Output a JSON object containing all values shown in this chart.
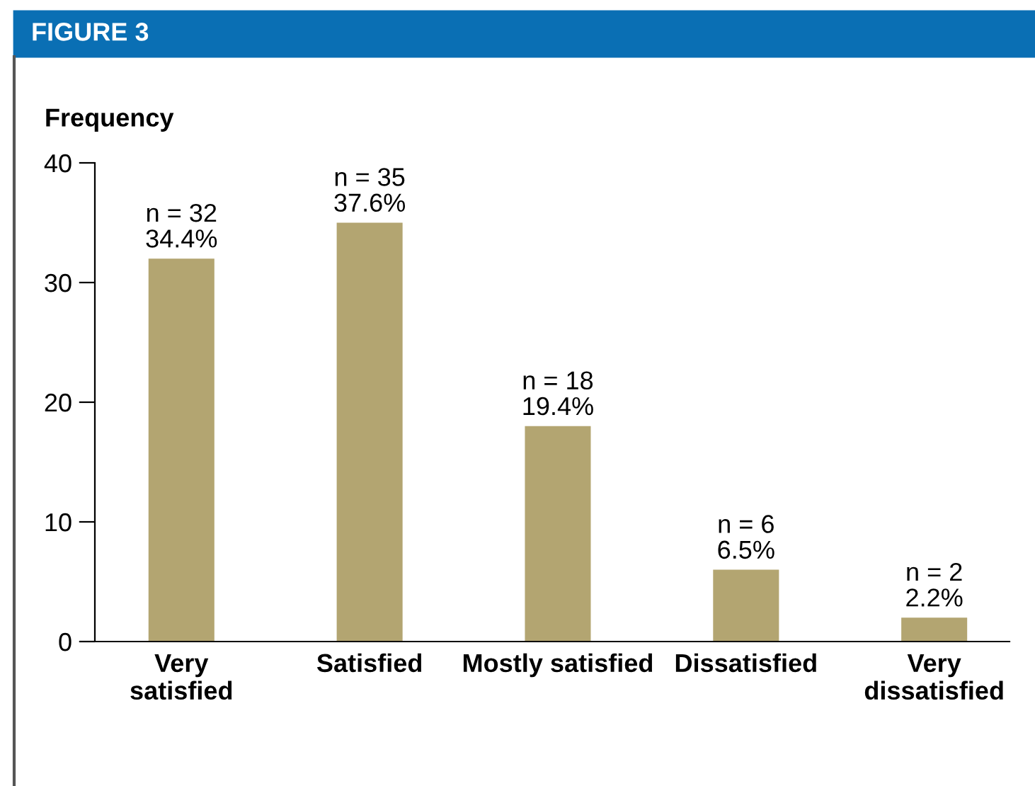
{
  "chart_data": {
    "type": "bar",
    "title": "FIGURE 3",
    "ylabel": "Frequency",
    "categories": [
      "Very\nsatisfied",
      "Satisfied",
      "Mostly satisfied",
      "Dissatisfied",
      "Very\ndissatisfied"
    ],
    "values": [
      32,
      35,
      18,
      6,
      2
    ],
    "value_labels": [
      "n = 32\n34.4%",
      "n = 35\n37.6%",
      "n = 18\n19.4%",
      "n = 6\n6.5%",
      "n = 2\n2.2%"
    ],
    "color": "#b3a571",
    "ylim": [
      0,
      40
    ],
    "yticks": [
      0,
      10,
      20,
      30,
      40
    ],
    "grid": false,
    "legend": false
  }
}
